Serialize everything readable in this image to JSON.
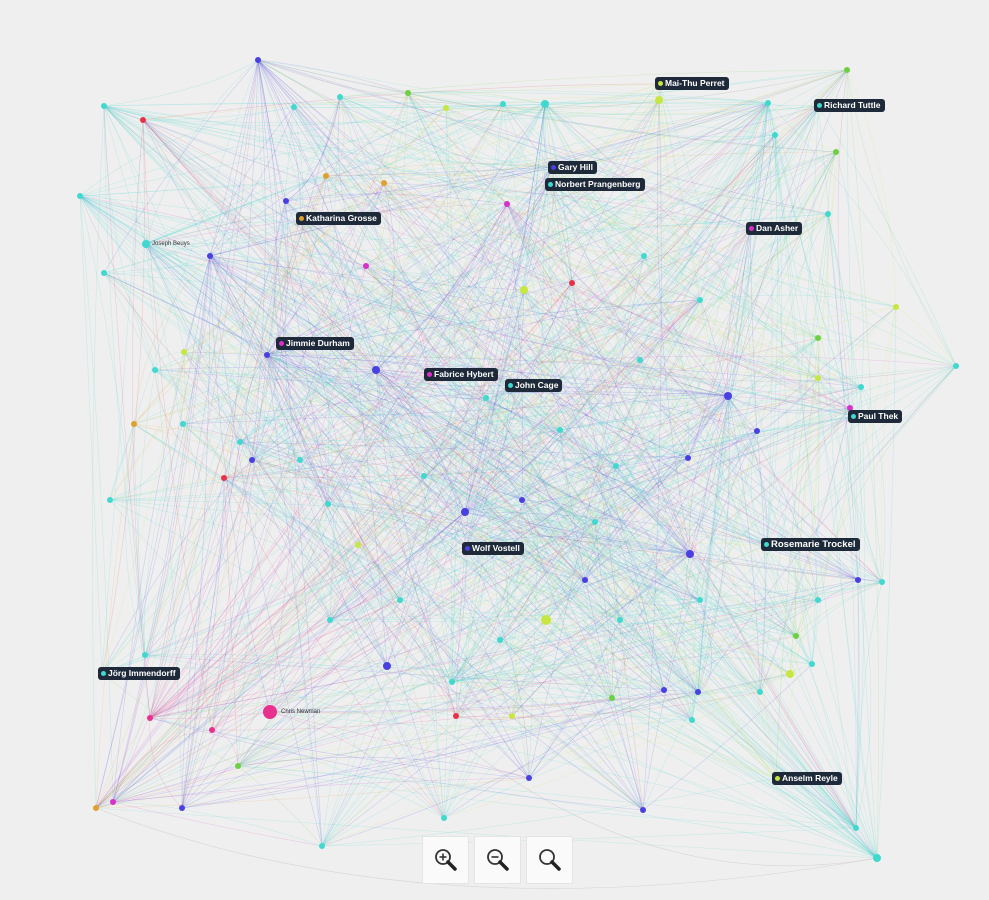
{
  "colors": {
    "cyan": "#40d8cf",
    "blue": "#4a3fe0",
    "magenta": "#d830c8",
    "pink": "#e8308f",
    "red": "#e83048",
    "lime": "#c8e640",
    "green": "#6cd040",
    "orange": "#e0a030",
    "label_bg": "#1e2a3a",
    "background": "#efefef"
  },
  "labeled_nodes": [
    {
      "name": "Mai-Thu Perret",
      "color": "#c8e640"
    },
    {
      "name": "Richard Tuttle",
      "color": "#40d8cf"
    },
    {
      "name": "Gary Hill",
      "color": "#4a3fe0"
    },
    {
      "name": "Norbert Prangenberg",
      "color": "#40d8cf"
    },
    {
      "name": "Katharina Grosse",
      "color": "#e0a030"
    },
    {
      "name": "Dan Asher",
      "color": "#d830c8"
    },
    {
      "name": "Jimmie Durham",
      "color": "#d830c8"
    },
    {
      "name": "Fabrice Hybert",
      "color": "#d830c8"
    },
    {
      "name": "John Cage",
      "color": "#40d8cf"
    },
    {
      "name": "Paul Thek",
      "color": "#40d8cf"
    },
    {
      "name": "Wolf Vostell",
      "color": "#4a3fe0"
    },
    {
      "name": "Rosemarie Trockel",
      "color": "#40d8cf"
    },
    {
      "name": "Jörg Immendorff",
      "color": "#40d8cf"
    },
    {
      "name": "Anselm Reyle",
      "color": "#c8e640"
    }
  ],
  "plain_labels": [
    {
      "name": "Joseph Beuys"
    },
    {
      "name": "Chris Newman"
    }
  ],
  "zoom_controls": {
    "zoom_in": "zoom-in",
    "zoom_out": "zoom-out",
    "reset": "reset-zoom"
  }
}
